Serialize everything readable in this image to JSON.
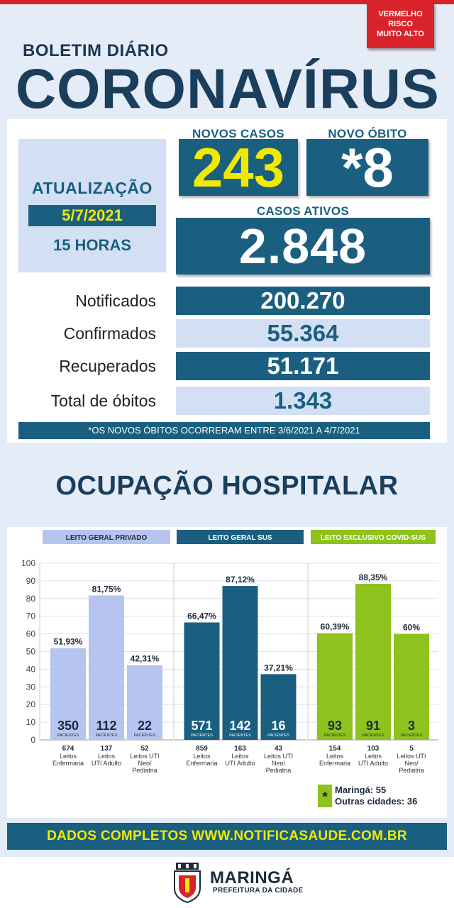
{
  "risk": {
    "line1": "VERMELHO",
    "line2": "RISCO",
    "line3": "MUITO ALTO",
    "color": "#d9232b"
  },
  "header": {
    "subtitle": "BOLETIM DIÁRIO",
    "title": "CORONAVÍRUS"
  },
  "update": {
    "label": "ATUALIZAÇÃO",
    "date": "5/7/2021",
    "time": "15 HORAS"
  },
  "new_cases": {
    "label": "NOVOS CASOS",
    "value": "243"
  },
  "new_deaths": {
    "label": "NOVO ÓBITO",
    "value": "*8"
  },
  "active_cases": {
    "label": "CASOS ATIVOS",
    "value": "2.848"
  },
  "stats": [
    {
      "label": "Notificados",
      "value": "200.270"
    },
    {
      "label": "Confirmados",
      "value": "55.364"
    },
    {
      "label": "Recuperados",
      "value": "51.171"
    },
    {
      "label": "Total de óbitos",
      "value": "1.343"
    }
  ],
  "note": "*OS NOVOS ÓBITOS OCORRERAM ENTRE 3/6/2021 A 4/7/2021",
  "occupancy_title": "OCUPAÇÃO HOSPITALAR",
  "chart_data": {
    "type": "bar",
    "ylim": [
      0,
      100
    ],
    "yticks": [
      0,
      10,
      20,
      30,
      40,
      50,
      60,
      70,
      80,
      90,
      100
    ],
    "patients_label": "PACIENTES",
    "groups": [
      {
        "name": "LEITO GERAL PRIVADO",
        "color": "#b6c4f0",
        "header_color": "#b6c4f0",
        "header_text_color": "#1d2a3a",
        "bars": [
          {
            "value": 51.93,
            "label": "51,93%",
            "patients": "350",
            "beds": "674",
            "type_lines": [
              "Leitos",
              "Enfermaria"
            ]
          },
          {
            "value": 81.75,
            "label": "81,75%",
            "patients": "112",
            "beds": "137",
            "type_lines": [
              "Leitos",
              "UTI Adulto"
            ]
          },
          {
            "value": 42.31,
            "label": "42,31%",
            "patients": "22",
            "beds": "52",
            "type_lines": [
              "Leitos UTI",
              "Neo/",
              "Pediatria"
            ]
          }
        ]
      },
      {
        "name": "LEITO GERAL SUS",
        "color": "#1a5f80",
        "header_color": "#1a5f80",
        "header_text_color": "#ffffff",
        "bars": [
          {
            "value": 66.47,
            "label": "66,47%",
            "patients": "571",
            "beds": "859",
            "type_lines": [
              "Leitos",
              "Enfermaria"
            ]
          },
          {
            "value": 87.12,
            "label": "87,12%",
            "patients": "142",
            "beds": "163",
            "type_lines": [
              "Leitos",
              "UTI Adulto"
            ]
          },
          {
            "value": 37.21,
            "label": "37,21%",
            "patients": "16",
            "beds": "43",
            "type_lines": [
              "Leitos UTI",
              "Neo/",
              "Pediatria"
            ]
          }
        ]
      },
      {
        "name": "LEITO EXCLUSIVO COVID-SUS",
        "color": "#8ec21d",
        "header_color": "#8ec21d",
        "header_text_color": "#ffffff",
        "bars": [
          {
            "value": 60.39,
            "label": "60,39%",
            "patients": "93",
            "beds": "154",
            "type_lines": [
              "Leitos",
              "Enfermaria"
            ]
          },
          {
            "value": 88.35,
            "label": "88,35%",
            "patients": "91",
            "beds": "103",
            "type_lines": [
              "Leitos",
              "UTI Adulto"
            ]
          },
          {
            "value": 60,
            "label": "60%",
            "patients": "3",
            "beds": "5",
            "type_lines": [
              "Leitos UTI",
              "Neo/",
              "Pediatria"
            ]
          }
        ]
      }
    ]
  },
  "legend": {
    "symbol": "*",
    "line1": "Maringá: 55",
    "line2": "Outras cidades: 36"
  },
  "footer": "DADOS COMPLETOS  WWW.NOTIFICASAUDE.COM.BR",
  "brand": {
    "name": "MARINGÁ",
    "subtitle": "PREFEITURA DA CIDADE"
  }
}
